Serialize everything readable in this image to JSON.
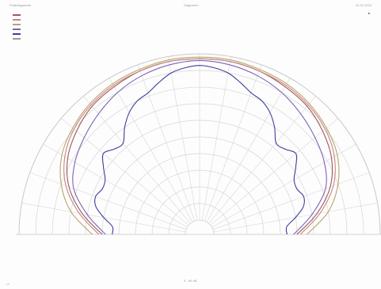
{
  "header": {
    "left": "Polardiagramm",
    "center": "Diagramm",
    "right": "01.01.2024"
  },
  "corner_mark": "■",
  "footer": {
    "scale": "0 - 90 dB",
    "page": "1/2"
  },
  "legend": [
    {
      "label": "",
      "color": "#9b5a5a"
    },
    {
      "label": "",
      "color": "#c98484"
    },
    {
      "label": "",
      "color": "#b9a46a"
    },
    {
      "label": "",
      "color": "#7b63b6"
    },
    {
      "label": "",
      "color": "#3d3d9e"
    },
    {
      "label": "",
      "color": "#9a9a9a"
    }
  ],
  "chart_data": {
    "type": "polar",
    "angle_range_deg": [
      -90,
      90
    ],
    "angle_step_deg": 10,
    "radial_rings": 10,
    "grid": true,
    "legend_position": "top-left",
    "series": [
      {
        "color": "#9b5a5a",
        "angles": [
          -90,
          -80,
          -70,
          -60,
          -50,
          -40,
          -30,
          -20,
          -10,
          0,
          10,
          20,
          30,
          40,
          50,
          60,
          70,
          80,
          90
        ],
        "radius": [
          0.5,
          0.63,
          0.75,
          0.83,
          0.88,
          0.92,
          0.94,
          0.96,
          0.97,
          0.97,
          0.97,
          0.96,
          0.94,
          0.92,
          0.88,
          0.83,
          0.75,
          0.63,
          0.5
        ]
      },
      {
        "color": "#c98484",
        "angles": [
          -90,
          -80,
          -70,
          -60,
          -50,
          -40,
          -30,
          -20,
          -10,
          0,
          10,
          20,
          30,
          40,
          50,
          60,
          70,
          80,
          90
        ],
        "radius": [
          0.52,
          0.65,
          0.77,
          0.85,
          0.9,
          0.93,
          0.95,
          0.96,
          0.97,
          0.97,
          0.97,
          0.96,
          0.95,
          0.93,
          0.9,
          0.85,
          0.77,
          0.65,
          0.52
        ]
      },
      {
        "color": "#b9a46a",
        "angles": [
          -90,
          -80,
          -70,
          -60,
          -50,
          -40,
          -30,
          -20,
          -10,
          0,
          10,
          20,
          30,
          40,
          50,
          60,
          70,
          80,
          90
        ],
        "radius": [
          0.56,
          0.7,
          0.8,
          0.87,
          0.91,
          0.94,
          0.96,
          0.97,
          0.98,
          0.98,
          0.98,
          0.97,
          0.96,
          0.94,
          0.91,
          0.87,
          0.8,
          0.7,
          0.56
        ]
      },
      {
        "color": "#7b63b6",
        "angles": [
          -90,
          -80,
          -70,
          -60,
          -50,
          -40,
          -30,
          -20,
          -10,
          0,
          10,
          20,
          30,
          40,
          50,
          60,
          70,
          80,
          90
        ],
        "radius": [
          0.48,
          0.6,
          0.72,
          0.78,
          0.82,
          0.86,
          0.9,
          0.93,
          0.95,
          0.96,
          0.95,
          0.93,
          0.9,
          0.86,
          0.82,
          0.78,
          0.72,
          0.6,
          0.48
        ]
      },
      {
        "color": "#3d3d9e",
        "angles": [
          -90,
          -85,
          -80,
          -75,
          -70,
          -65,
          -60,
          -55,
          -50,
          -45,
          -40,
          -35,
          -30,
          -25,
          -20,
          -15,
          -10,
          -5,
          0,
          5,
          10,
          15,
          20,
          25,
          30,
          35,
          40,
          45,
          50,
          55,
          60,
          65,
          70,
          75,
          80,
          85,
          90
        ],
        "radius": [
          0.44,
          0.44,
          0.5,
          0.56,
          0.58,
          0.56,
          0.57,
          0.62,
          0.67,
          0.64,
          0.63,
          0.7,
          0.76,
          0.8,
          0.82,
          0.86,
          0.9,
          0.92,
          0.93,
          0.92,
          0.9,
          0.86,
          0.82,
          0.8,
          0.76,
          0.7,
          0.63,
          0.64,
          0.67,
          0.62,
          0.57,
          0.56,
          0.58,
          0.56,
          0.5,
          0.44,
          0.44
        ]
      }
    ]
  }
}
